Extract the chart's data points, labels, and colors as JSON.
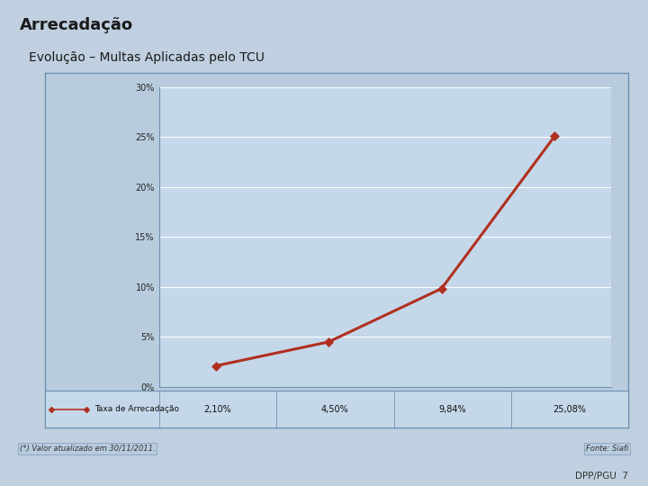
{
  "title_main": "Arrecadação",
  "subtitle": "Evolução – Multas Aplicadas pelo TCU",
  "x_values": [
    1,
    2,
    3,
    4
  ],
  "y_values": [
    2.1,
    4.5,
    9.84,
    25.08
  ],
  "x_labels": [
    "2,10%",
    "4,50%",
    "9,84%",
    "25,08%"
  ],
  "legend_label": "Taxa de Arrecadação",
  "y_ticks": [
    0,
    5,
    10,
    15,
    20,
    25,
    30
  ],
  "y_tick_labels": [
    "0%",
    "5%",
    "10%",
    "15%",
    "20%",
    "25%",
    "30%"
  ],
  "ylim": [
    0,
    30
  ],
  "line_color": "#b03020",
  "marker_color": "#b03020",
  "plot_bg_color": "#c5d8ea",
  "outer_bg_color": "#b8ccde",
  "slide_bg_color": "#c0d0e0",
  "footer_note": "(*) Valor atualizado em 30/11/2011.",
  "fonte": "Fonte: Siafi",
  "page": "DPP/PGU  7",
  "title_fontsize": 13,
  "subtitle_fontsize": 10,
  "tick_fontsize": 7,
  "table_fontsize": 6.5
}
